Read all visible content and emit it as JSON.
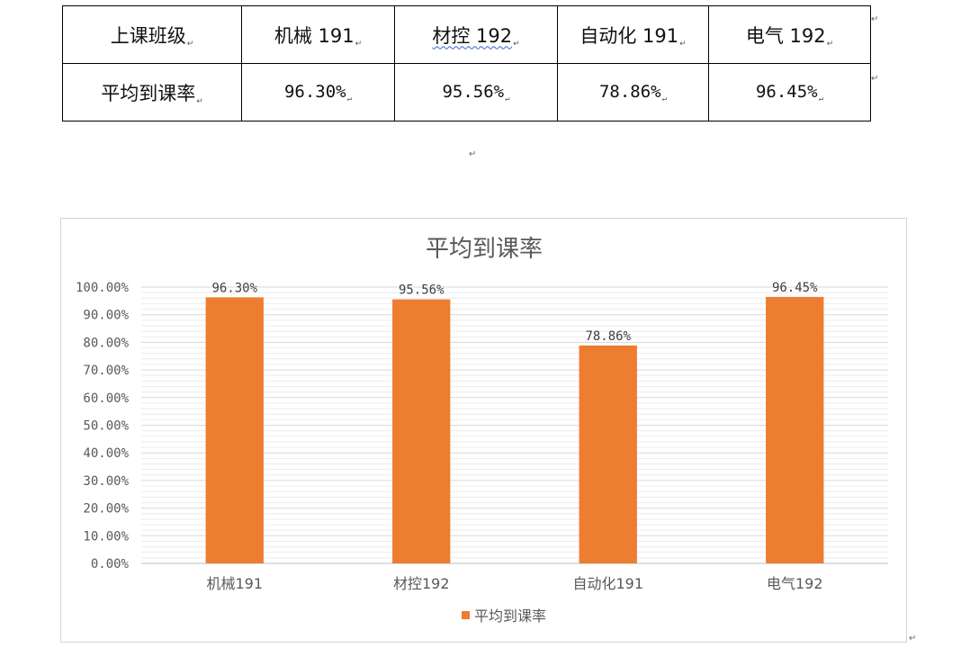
{
  "table": {
    "header_label": "上课班级",
    "row_label": "平均到课率",
    "classes": [
      "机械 191",
      "材控 192",
      "自动化 191",
      "电气 192"
    ],
    "rates": [
      "96.30%",
      "95.56%",
      "78.86%",
      "96.45%"
    ]
  },
  "paragraph_mark": "↵",
  "chart_data": {
    "type": "bar",
    "title": "平均到课率",
    "categories": [
      "机械191",
      "材控192",
      "自动化191",
      "电气192"
    ],
    "series": [
      {
        "name": "平均到课率",
        "values": [
          96.3,
          95.56,
          78.86,
          96.45
        ],
        "color": "#ED7D31"
      }
    ],
    "data_labels": [
      "96.30%",
      "95.56%",
      "78.86%",
      "96.45%"
    ],
    "ylim": [
      0,
      100
    ],
    "yticks": [
      "0.00%",
      "10.00%",
      "20.00%",
      "30.00%",
      "40.00%",
      "50.00%",
      "60.00%",
      "70.00%",
      "80.00%",
      "90.00%",
      "100.00%"
    ],
    "grid": true,
    "legend_position": "bottom",
    "xlabel": "",
    "ylabel": ""
  }
}
